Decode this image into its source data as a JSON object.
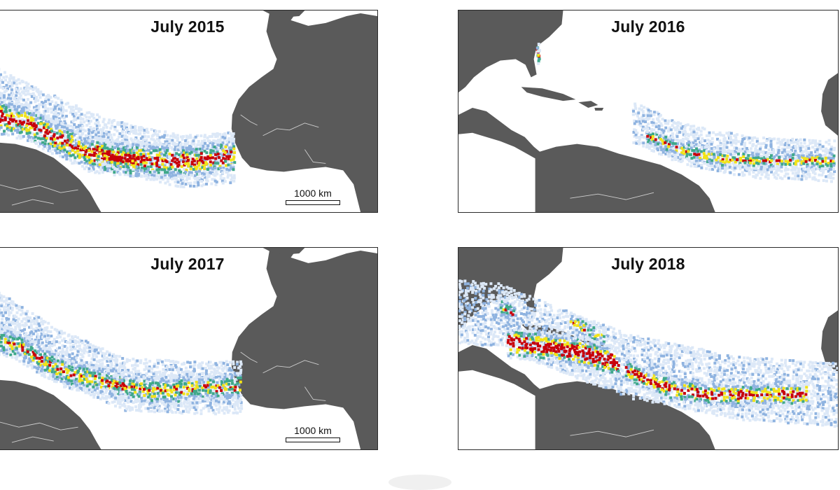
{
  "map_panels": [
    {
      "id": "p2015",
      "title": "July 2015",
      "scale_label": "1000 km"
    },
    {
      "id": "p2016",
      "title": "July 2016",
      "scale_label": ""
    },
    {
      "id": "p2017",
      "title": "July 2017",
      "scale_label": "1000 km"
    },
    {
      "id": "p2018",
      "title": "July 2018",
      "scale_label": ""
    }
  ],
  "colors": {
    "land": "#5a5a5a",
    "ocean": "#ffffff",
    "frame": "#2b2b2b",
    "density_low": "#dce8f7",
    "density_mid_low": "#8fb3e0",
    "density_mid": "#3fa88a",
    "density_mid_high": "#f2e318",
    "density_high": "#c8000a"
  }
}
